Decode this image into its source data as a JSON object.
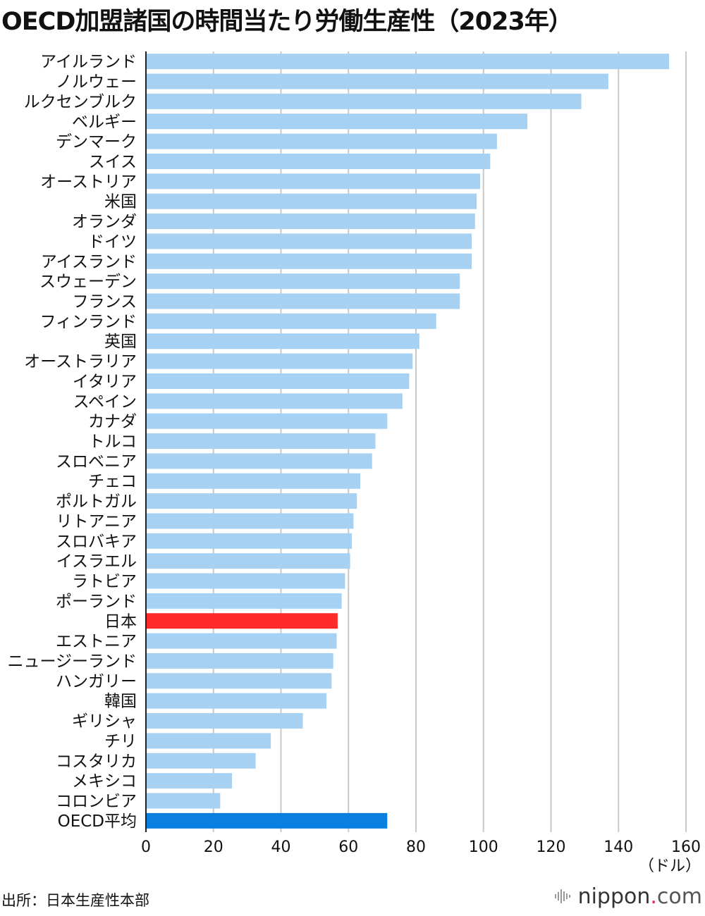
{
  "title": "OECD加盟諸国の時間当たり労働生産性（2023年）",
  "source": "出所：日本生産性本部",
  "brand": {
    "name": "nippon",
    "dot": ".",
    "tld": "com"
  },
  "colors": {
    "bar": "#a6d1f2",
    "highlight": "#ff2a2a",
    "average": "#0a7fe0",
    "grid": "#c8c8c8",
    "axis": "#222222"
  },
  "chart_data": {
    "type": "bar",
    "orientation": "horizontal",
    "unit": "（ドル）",
    "xlim": [
      0,
      160
    ],
    "xticks": [
      0,
      20,
      40,
      60,
      80,
      100,
      120,
      140,
      160
    ],
    "grid": true,
    "categories": [
      "アイルランド",
      "ノルウェー",
      "ルクセンブルク",
      "ベルギー",
      "デンマーク",
      "スイス",
      "オーストリア",
      "米国",
      "オランダ",
      "ドイツ",
      "アイスランド",
      "スウェーデン",
      "フランス",
      "フィンランド",
      "英国",
      "オーストラリア",
      "イタリア",
      "スペイン",
      "カナダ",
      "トルコ",
      "スロベニア",
      "チェコ",
      "ポルトガル",
      "リトアニア",
      "スロバキア",
      "イスラエル",
      "ラトビア",
      "ポーランド",
      "日本",
      "エストニア",
      "ニュージーランド",
      "ハンガリー",
      "韓国",
      "ギリシャ",
      "チリ",
      "コスタリカ",
      "メキシコ",
      "コロンビア",
      "OECD平均"
    ],
    "values": [
      155.0,
      137.0,
      129.0,
      113.0,
      104.0,
      102.0,
      99.0,
      98.0,
      97.5,
      96.5,
      96.5,
      93.0,
      93.0,
      86.0,
      81.0,
      79.0,
      78.0,
      76.0,
      71.5,
      68.0,
      67.0,
      63.5,
      62.5,
      61.5,
      61.0,
      60.5,
      59.0,
      58.0,
      56.8,
      56.5,
      55.5,
      55.0,
      53.5,
      46.5,
      37.0,
      32.5,
      25.5,
      22.0,
      71.5
    ],
    "highlight": [
      "日本"
    ],
    "average": [
      "OECD平均"
    ]
  }
}
